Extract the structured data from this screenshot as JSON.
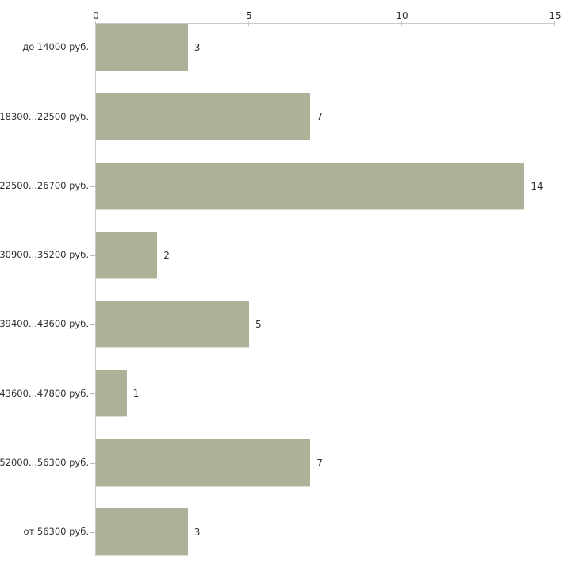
{
  "chart_data": {
    "type": "bar",
    "orientation": "horizontal",
    "title": "",
    "xlabel": "",
    "ylabel": "",
    "categories": [
      "до 14000 руб.",
      "18300...22500 руб.",
      "22500...26700 руб.",
      "30900...35200 руб.",
      "39400...43600 руб.",
      "43600...47800 руб.",
      "52000...56300 руб.",
      "от 56300 руб."
    ],
    "values": [
      3,
      7,
      14,
      2,
      5,
      1,
      7,
      3
    ],
    "x_ticks": [
      0,
      5,
      10,
      15
    ],
    "xlim": [
      0,
      15
    ],
    "axis_position": "top",
    "grid": "off",
    "legend": "none",
    "colors": {
      "bar": "#ABB297",
      "bar_edge": "#DDE0CE",
      "axis": "#C9C9C9",
      "tick": "#C9CBA3",
      "ytick": "#B9BBAD",
      "text": "#303030",
      "background": "#FFFFFF"
    }
  }
}
